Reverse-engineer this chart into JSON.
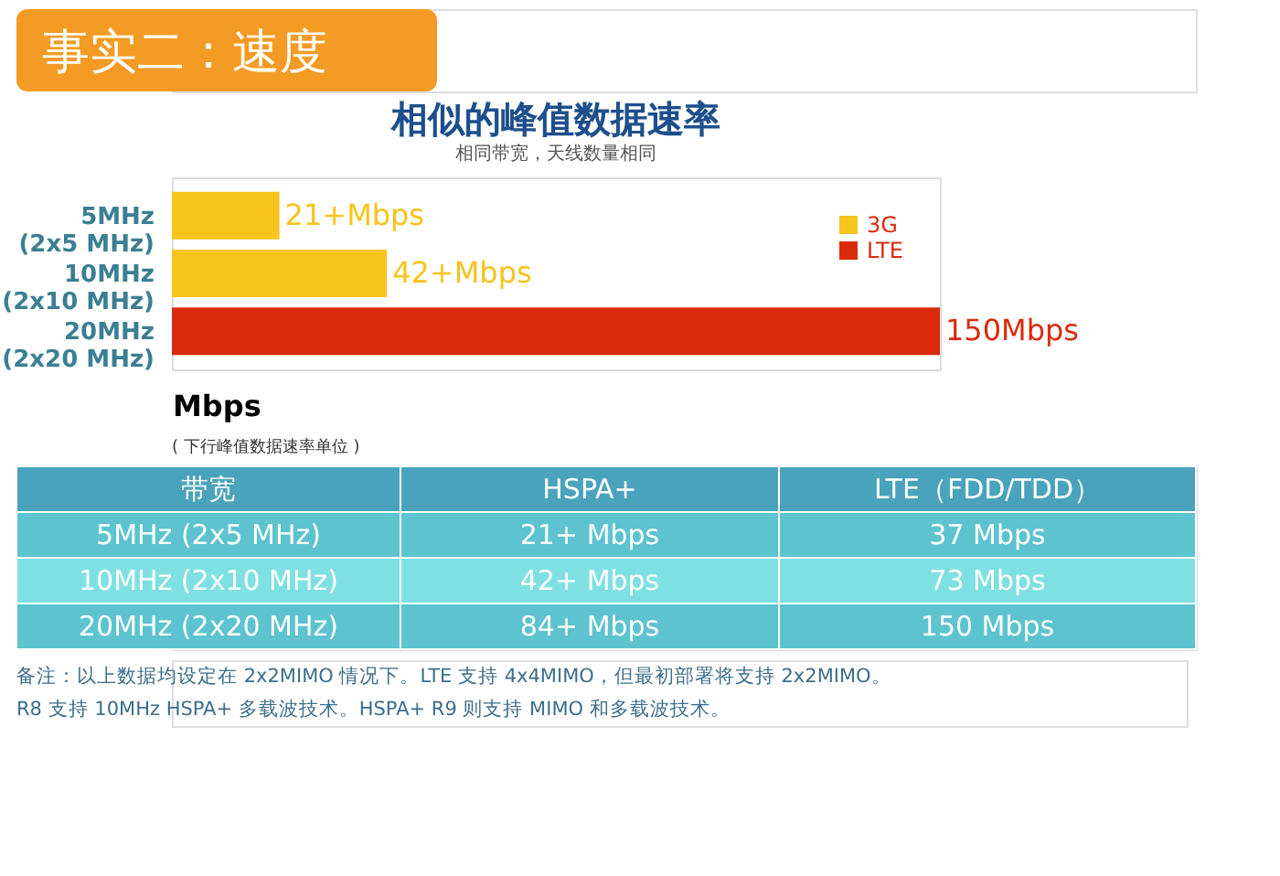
{
  "chart_data": {
    "type": "bar",
    "orientation": "horizontal",
    "stacked": true,
    "title": "相似的峰值数据速率",
    "subtitle": "相同带宽，天线数量相同",
    "categories": [
      "5MHz\n(2x5 MHz)",
      "10MHz\n(2x10 MHz)",
      "20MHz\n(2x20 MHz)"
    ],
    "series": [
      {
        "name": "3G",
        "color": "#f7c31d",
        "values": [
          21,
          42,
          null
        ],
        "value_labels": [
          "21+Mbps",
          "42+Mbps",
          null
        ]
      },
      {
        "name": "LTE",
        "color": "#d92b0c",
        "values": [
          null,
          null,
          150
        ],
        "value_labels": [
          null,
          null,
          "150Mbps"
        ]
      }
    ],
    "xlabel": "Mbps",
    "xlim": [
      0,
      150
    ],
    "legend": "top right",
    "tick_labels": "y",
    "annotations": [
      "事实二：速度",
      "( 下行峰值数据速率单位 )",
      "带宽",
      "HSPA+",
      "LTE（FDD/TDD）",
      "5MHz (2x5 MHz)",
      "21+ Mbps",
      "37 Mbps",
      "10MHz (2x10 MHz)",
      "42+ Mbps",
      "73 Mbps",
      "20MHz (2x20 MHz)",
      "84+ Mbps",
      "150 Mbps",
      "备注：以上数据均设定在 2x2MIMO 情况下。LTE 支持 4x4MIMO，但最初部署将支持 2x2MIMO。",
      "R8 支持 10MHz HSPA+ 多载波技术。HSPA+ R9 则支持 MIMO 和多载波技术。"
    ]
  }
}
